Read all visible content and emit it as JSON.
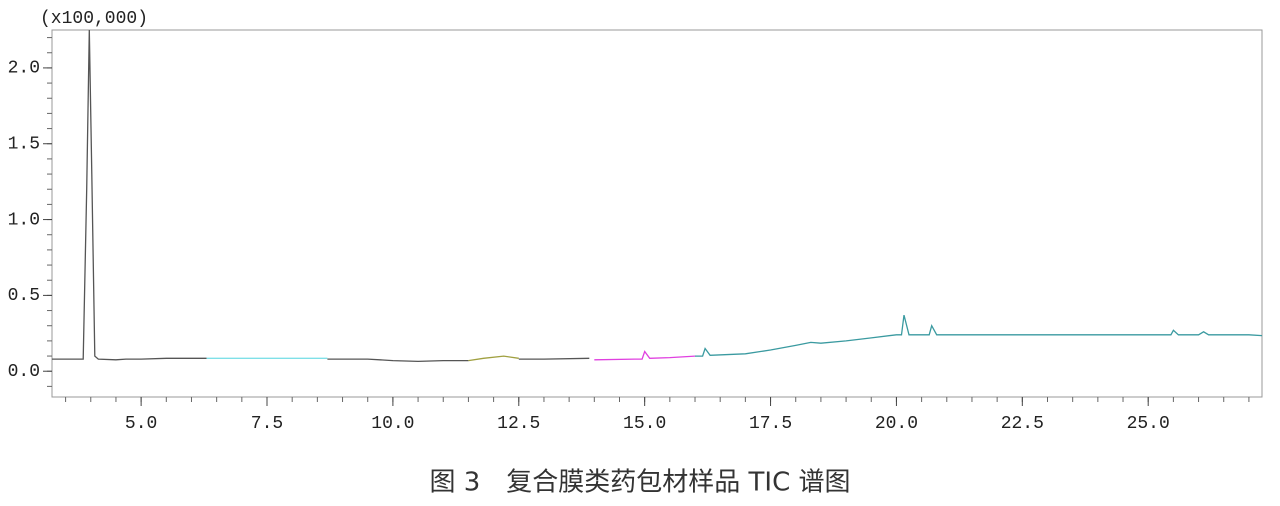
{
  "chart_data": {
    "type": "line",
    "title": "图 3　复合膜类药包材样品 TIC 谱图",
    "unit_label": "(x100,000)",
    "xlim": [
      3.23,
      27.26
    ],
    "ylim": [
      -0.17,
      2.25
    ],
    "xticks": [
      {
        "value": 5,
        "label": "5.0"
      },
      {
        "value": 7.5,
        "label": "7.5"
      },
      {
        "value": 10,
        "label": "10.0"
      },
      {
        "value": 12.5,
        "label": "12.5"
      },
      {
        "value": 15,
        "label": "15.0"
      },
      {
        "value": 17.5,
        "label": "17.5"
      },
      {
        "value": 20,
        "label": "20.0"
      },
      {
        "value": 22.5,
        "label": "22.5"
      },
      {
        "value": 25,
        "label": "25.0"
      }
    ],
    "yticks": [
      {
        "value": 0,
        "label": "0.0"
      },
      {
        "value": 0.5,
        "label": "0.5"
      },
      {
        "value": 1,
        "label": "1.0"
      },
      {
        "value": 1.5,
        "label": "1.5"
      },
      {
        "value": 2,
        "label": "2.0"
      }
    ],
    "series": [
      {
        "color": "#555555",
        "x": [
          3.23,
          3.85,
          3.92,
          3.97,
          4.02,
          4.08,
          4.15,
          4.5,
          4.7,
          5.0,
          5.5,
          6.3
        ],
        "values": [
          0.08,
          0.08,
          1.2,
          2.25,
          1.3,
          0.1,
          0.08,
          0.075,
          0.08,
          0.08,
          0.085,
          0.085
        ]
      },
      {
        "color": "#7fe0e8",
        "x": [
          6.3,
          7.5,
          8.7
        ],
        "values": [
          0.085,
          0.085,
          0.085
        ]
      },
      {
        "color": "#555555",
        "x": [
          8.7,
          9.5,
          10.0,
          10.5,
          11.0,
          11.5
        ],
        "values": [
          0.08,
          0.08,
          0.07,
          0.065,
          0.07,
          0.07
        ]
      },
      {
        "color": "#a0a040",
        "x": [
          11.5,
          11.8,
          12.2,
          12.5
        ],
        "values": [
          0.07,
          0.085,
          0.1,
          0.085
        ]
      },
      {
        "color": "#555555",
        "x": [
          12.5,
          13.0,
          13.9
        ],
        "values": [
          0.08,
          0.08,
          0.085
        ]
      },
      {
        "color": "#e040e0",
        "x": [
          14.0,
          14.8,
          14.95,
          15.0,
          15.1,
          15.5,
          16.0
        ],
        "values": [
          0.075,
          0.08,
          0.08,
          0.13,
          0.085,
          0.09,
          0.1
        ]
      },
      {
        "color": "#3a9aa0",
        "x": [
          16.0,
          16.15,
          16.2,
          16.3,
          17.0,
          17.5,
          18.0,
          18.3,
          18.5,
          19.0,
          19.5,
          20.0,
          20.1,
          20.15,
          20.25,
          20.5,
          20.65,
          20.7,
          20.8,
          21.5,
          22.0,
          23.0,
          24.0,
          25.0,
          25.45,
          25.5,
          25.6,
          26.0,
          26.1,
          26.2,
          27.0,
          27.26
        ],
        "values": [
          0.1,
          0.1,
          0.15,
          0.105,
          0.115,
          0.14,
          0.17,
          0.19,
          0.185,
          0.2,
          0.22,
          0.24,
          0.24,
          0.37,
          0.24,
          0.24,
          0.24,
          0.3,
          0.24,
          0.24,
          0.24,
          0.24,
          0.24,
          0.24,
          0.24,
          0.27,
          0.24,
          0.24,
          0.26,
          0.24,
          0.24,
          0.235
        ]
      }
    ]
  }
}
